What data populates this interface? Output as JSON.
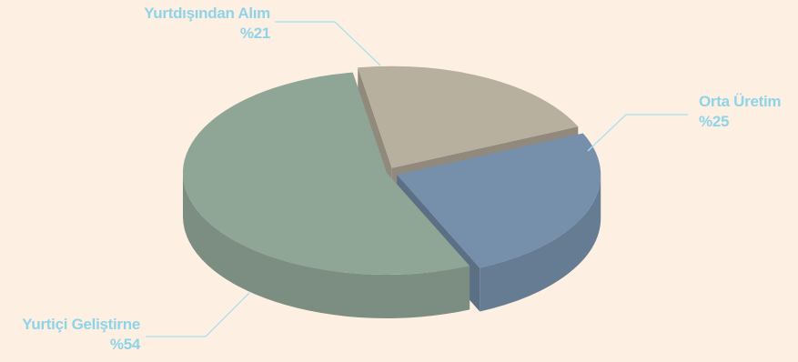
{
  "chart_data": {
    "type": "pie",
    "style": "3d-exploded",
    "title": "",
    "slices": [
      {
        "label": "Orta Üretim",
        "percent_label": "%25",
        "value": 25,
        "color": "#7690ab"
      },
      {
        "label": "Yurtiçi Geliştirne",
        "percent_label": "%54",
        "value": 54,
        "color": "#8fa596"
      },
      {
        "label": "Yurtdışından Alım",
        "percent_label": "%21",
        "value": 21,
        "color": "#b8b09f"
      }
    ],
    "label_color": "#8fd3e8",
    "leader_line_color": "#a9dfee",
    "background": "#fdf0e3"
  }
}
